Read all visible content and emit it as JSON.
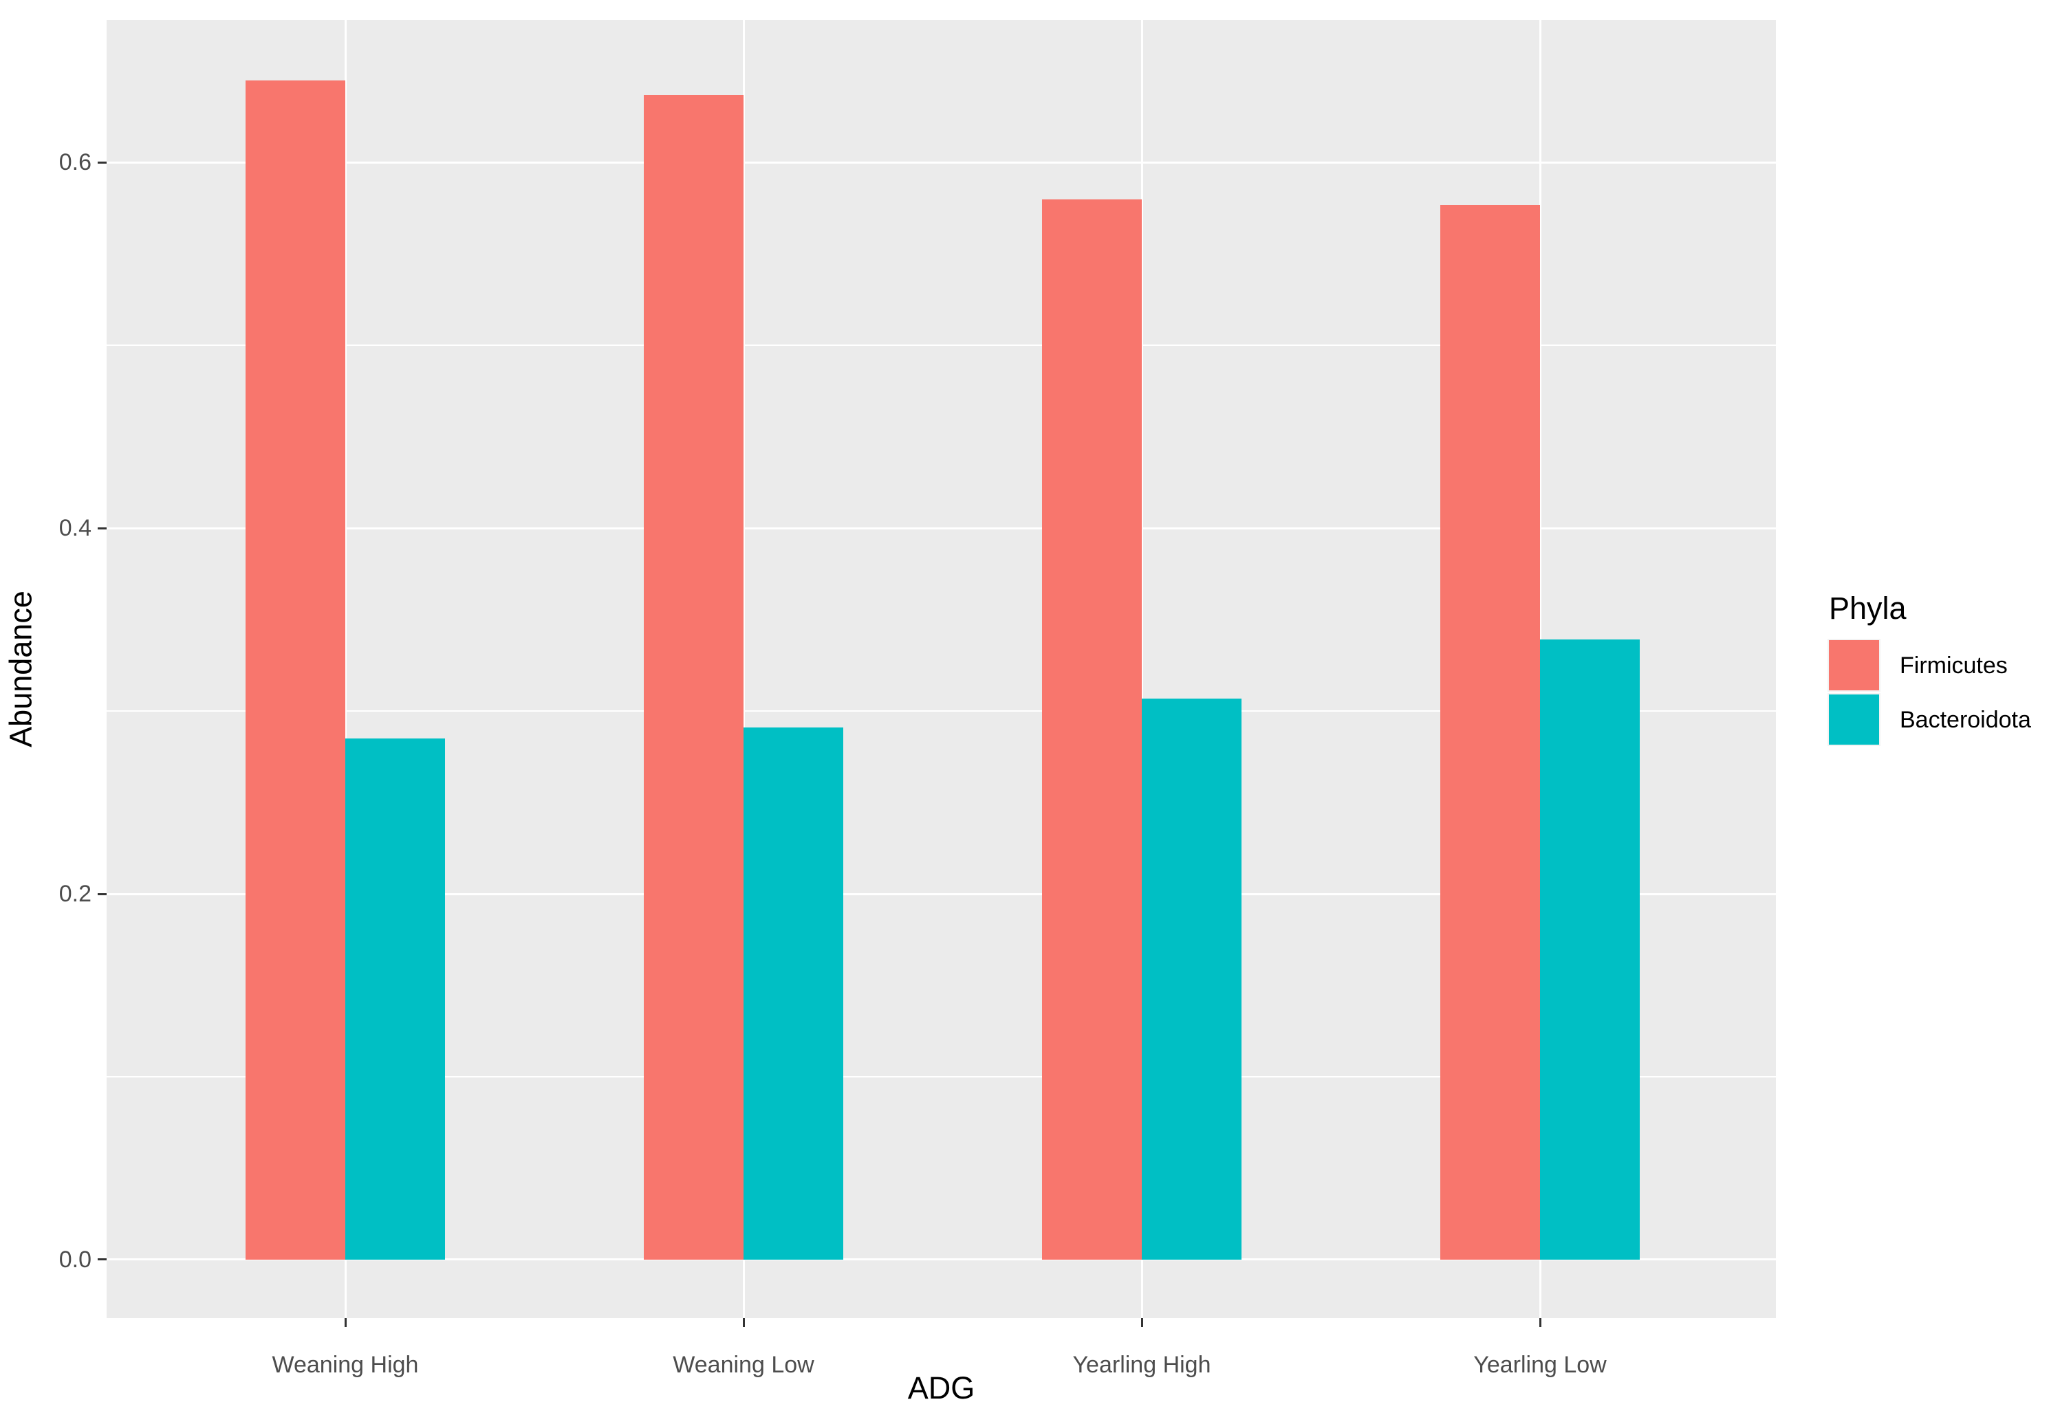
{
  "chart_data": {
    "type": "bar",
    "title": "",
    "xlabel": "ADG",
    "ylabel": "Abundance",
    "legend_title": "Phyla",
    "legend_position": "right",
    "categories": [
      "Weaning High",
      "Weaning Low",
      "Yearling High",
      "Yearling Low"
    ],
    "series": [
      {
        "name": "Firmicutes",
        "color": "#F8766D",
        "values": [
          0.645,
          0.637,
          0.58,
          0.577
        ]
      },
      {
        "name": "Bacteroidota",
        "color": "#00BFC4",
        "values": [
          0.285,
          0.291,
          0.307,
          0.339
        ]
      }
    ],
    "y_ticks": [
      0.0,
      0.2,
      0.4,
      0.6
    ],
    "y_tick_labels": [
      "0.0",
      "0.2",
      "0.4",
      "0.6"
    ],
    "y_minor_ticks": [
      0.1,
      0.3,
      0.5
    ],
    "ylim": [
      -0.032,
      0.678
    ],
    "grid": true,
    "panel_bg": "#EBEBEB",
    "grid_color": "#FFFFFF",
    "tick_color": "#333333",
    "axis_text_color": "#4D4D4D",
    "axis_title_color": "#000000"
  }
}
